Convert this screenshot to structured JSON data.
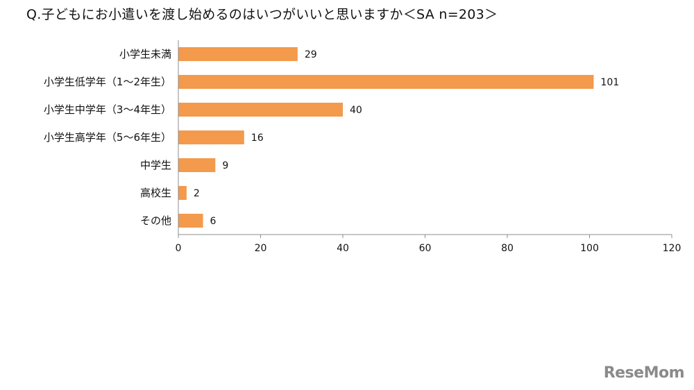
{
  "chart_data": {
    "type": "bar",
    "orientation": "horizontal",
    "title": "Q.子どもにお小遣いを渡し始めるのはいつがいいと思いますか＜SA n=203＞",
    "categories": [
      "小学生未満",
      "小学生低学年（1～2年生）",
      "小学生中学年（3～4年生）",
      "小学生高学年（5～6年生）",
      "中学生",
      "高校生",
      "その他"
    ],
    "values": [
      29,
      101,
      40,
      16,
      9,
      2,
      6
    ],
    "xlim": [
      0,
      120
    ],
    "xticks": [
      "0",
      "20",
      "40",
      "60",
      "80",
      "100",
      "120"
    ],
    "grid": false,
    "bar_color": "#f39a4c"
  },
  "watermark": "ReseMom"
}
